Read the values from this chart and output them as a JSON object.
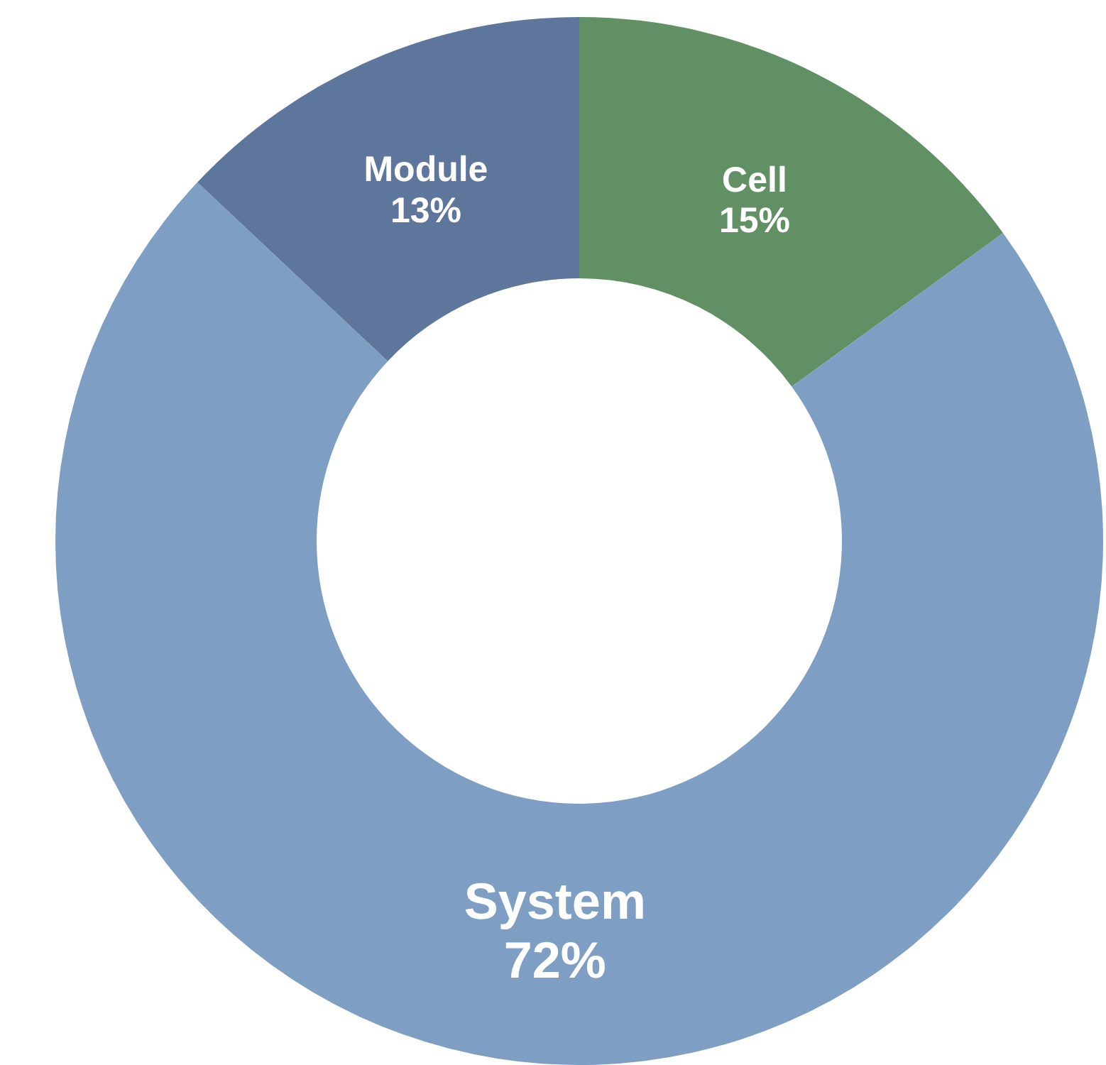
{
  "chart_data": {
    "type": "donut",
    "categories": [
      "Cell",
      "System",
      "Module"
    ],
    "values": [
      15,
      72,
      13
    ],
    "value_labels": [
      "15%",
      "72%",
      "13%"
    ],
    "colors": [
      "#629065",
      "#7f9ec4",
      "#5e769c"
    ],
    "legend": false
  }
}
